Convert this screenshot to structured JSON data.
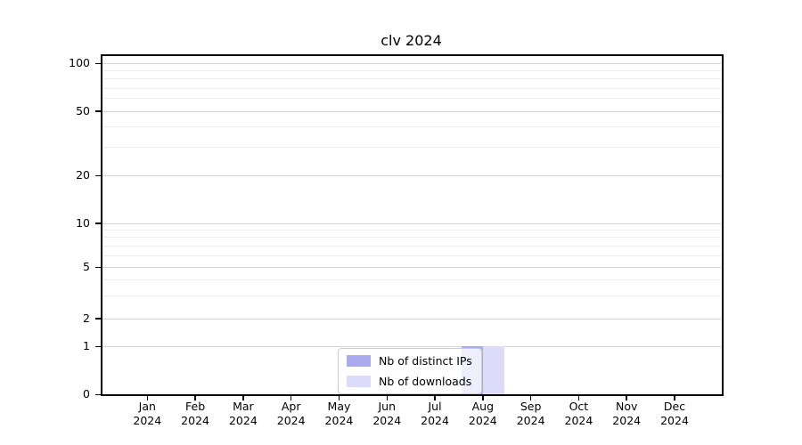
{
  "chart_data": {
    "type": "bar",
    "title": "clv 2024",
    "year": "2024",
    "categories": [
      "Jan",
      "Feb",
      "Mar",
      "Apr",
      "May",
      "Jun",
      "Jul",
      "Aug",
      "Sep",
      "Oct",
      "Nov",
      "Dec"
    ],
    "series": [
      {
        "name": "Nb of distinct IPs",
        "color": "#aaaaf0",
        "values": [
          0,
          0,
          0,
          0,
          0,
          0,
          0,
          1,
          0,
          0,
          0,
          0
        ]
      },
      {
        "name": "Nb of downloads",
        "color": "#dcdcfa",
        "values": [
          0,
          0,
          0,
          0,
          0,
          0,
          0,
          1,
          0,
          0,
          0,
          0
        ]
      }
    ],
    "xlabel": "",
    "ylabel": "",
    "y_axis": {
      "scale": "log-like",
      "ticks": [
        0,
        1,
        2,
        5,
        10,
        20,
        50,
        100
      ],
      "minor_ticks": [
        3,
        4,
        6,
        7,
        8,
        9,
        30,
        40,
        60,
        70,
        80,
        90
      ],
      "range": [
        0,
        100
      ]
    },
    "grid": true,
    "legend_position": "lower center"
  },
  "colors": {
    "major_grid": "#d4d4d4",
    "minor_grid": "#ececec",
    "axis": "#000000",
    "background": "#ffffff"
  }
}
